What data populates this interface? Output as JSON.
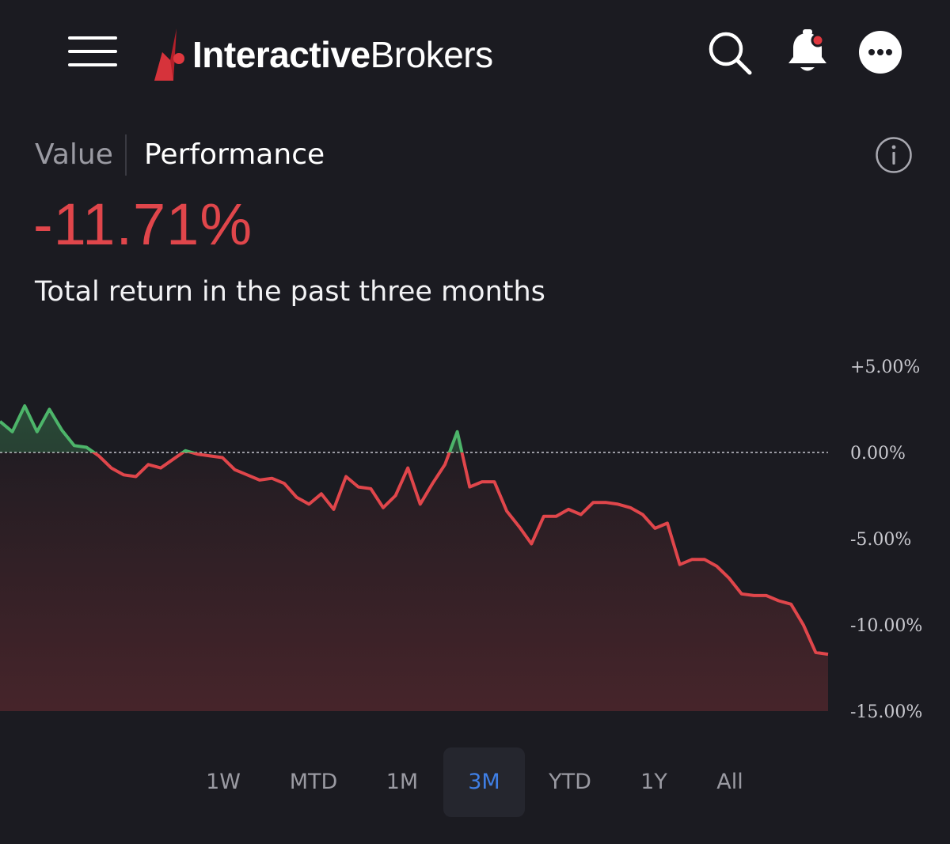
{
  "header": {
    "logo_bold": "Interactive",
    "logo_regular": "Brokers",
    "icons": [
      "menu-icon",
      "search-icon",
      "bell-icon",
      "more-icon"
    ]
  },
  "view_tabs": [
    {
      "label": "Value",
      "active": false
    },
    {
      "label": "Performance",
      "active": true
    }
  ],
  "summary": {
    "return_pct": "-11.71%",
    "caption": "Total return in the past three months"
  },
  "colors": {
    "background": "#1b1b21",
    "negative": "#e0464b",
    "positive": "#4db56a",
    "accent": "#3f7fe6"
  },
  "chart_data": {
    "type": "line",
    "y_unit": "%",
    "ylim": [
      -15,
      5
    ],
    "yticks": [
      "+5.00%",
      "0.00%",
      "-5.00%",
      "-10.00%",
      "-15.00%"
    ],
    "ytick_values": [
      5,
      0,
      -5,
      -10,
      -15
    ],
    "baseline": 0,
    "values": [
      1.8,
      1.2,
      2.7,
      1.2,
      2.5,
      1.3,
      0.4,
      0.3,
      -0.2,
      -0.9,
      -1.3,
      -1.4,
      -0.7,
      -0.9,
      -0.4,
      0.1,
      -0.1,
      -0.2,
      -0.3,
      -1.0,
      -1.3,
      -1.6,
      -1.5,
      -1.8,
      -2.6,
      -3.0,
      -2.4,
      -3.3,
      -1.4,
      -2.0,
      -2.1,
      -3.2,
      -2.5,
      -0.9,
      -3.0,
      -1.8,
      -0.7,
      1.2,
      -2.0,
      -1.7,
      -1.7,
      -3.4,
      -4.3,
      -5.3,
      -3.7,
      -3.7,
      -3.3,
      -3.6,
      -2.9,
      -2.9,
      -3.0,
      -3.2,
      -3.6,
      -4.4,
      -4.1,
      -6.5,
      -6.2,
      -6.2,
      -6.6,
      -7.3,
      -8.2,
      -8.3,
      -8.3,
      -8.6,
      -8.8,
      -10.0,
      -11.6,
      -11.7
    ]
  },
  "range_tabs": [
    {
      "label": "1W",
      "active": false
    },
    {
      "label": "MTD",
      "active": false
    },
    {
      "label": "1M",
      "active": false
    },
    {
      "label": "3M",
      "active": true
    },
    {
      "label": "YTD",
      "active": false
    },
    {
      "label": "1Y",
      "active": false
    },
    {
      "label": "All",
      "active": false
    }
  ]
}
